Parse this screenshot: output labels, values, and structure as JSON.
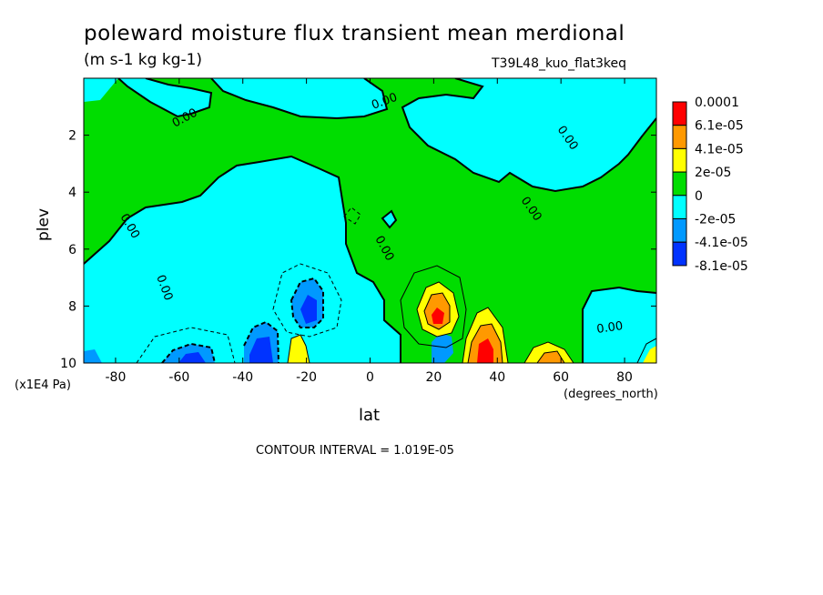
{
  "chart_data": {
    "type": "heatmap",
    "title": "poleward moisture flux transient mean merdional",
    "units": "(m s-1 kg kg-1)",
    "case_label": "T39L48_kuo_flat3keq",
    "xlabel": "lat",
    "ylabel": "plev",
    "x_unit_label": "(degrees_north)",
    "y_unit_label": "(x1E4 Pa)",
    "contour_interval_text": "CONTOUR INTERVAL = 1.019E-05",
    "xlim": [
      -90,
      90
    ],
    "ylim": [
      0,
      10
    ],
    "y_inverted": true,
    "x_ticks": [
      "-80",
      "-60",
      "-40",
      "-20",
      "0",
      "20",
      "40",
      "60",
      "80"
    ],
    "y_ticks": [
      "2",
      "4",
      "6",
      "8",
      "10"
    ],
    "contour_labels": [
      "0.00",
      "0.00",
      "0.00",
      "0.00",
      "0.00",
      "0.00",
      "0.00",
      "0.00"
    ],
    "colorbar": {
      "labels": [
        "0.0001",
        "6.1e-05",
        "4.1e-05",
        "2e-05",
        "0",
        "-2e-05",
        "-4.1e-05",
        "-8.1e-05"
      ],
      "colors": [
        "#ff0000",
        "#ff9900",
        "#ffff00",
        "#00dd00",
        "#00ffff",
        "#0099ff",
        "#0033ff"
      ]
    },
    "palette": {
      "neg_strong": "#0033ff",
      "neg_mid": "#0099ff",
      "neg_weak": "#00ffff",
      "pos_weak": "#00dd00",
      "pos_mid": "#ffff00",
      "pos_strong": "#ff9900",
      "pos_max": "#ff0000"
    }
  }
}
